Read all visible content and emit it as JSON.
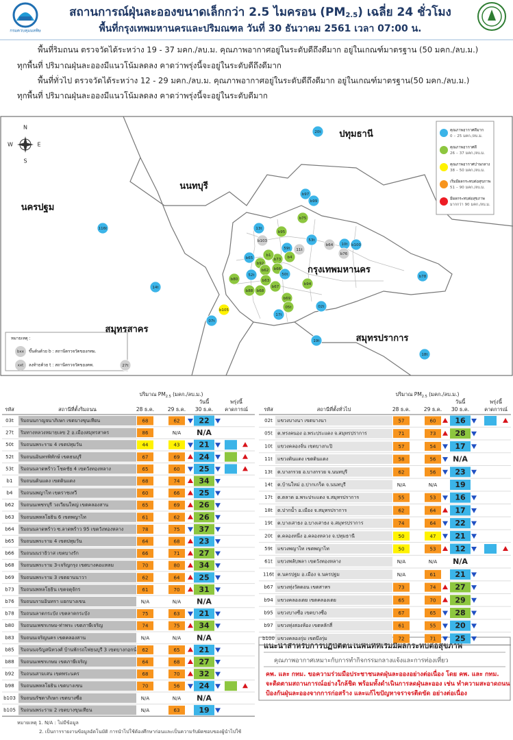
{
  "header": {
    "title": [
      "สถานการณ์ฝุ่นละอองขนาดเล็กกว่า 2.5 ไมครอน (PM",
      "2.5",
      ") เฉลี่ย 24 ชั่วโมง"
    ],
    "subtitle": "พื้นที่กรุงเทพมหานครและปริมณฑล วันที่ 30 ธันวาคม 2561 เวลา 07:00 น.",
    "logo_text": "กรมควบคุมมลพิษ"
  },
  "summary": [
    "พื้นที่ริมถนน ตรวจวัดได้ระหว่าง  19 - 37  มคก./ลบ.ม. คุณภาพอากาศอยู่ในระดับดีถึงดีมาก อยู่ในเกณฑ์มาตรฐาน (50 มคก./ลบ.ม.)",
    "ทุกพื้นที่ ปริมาณฝุ่นละอองมีแนวโน้มลดลง คาดว่าพรุ่งนี้จะอยู่ในระดับดีถึงดีมาก",
    "พื้นที่ทั่วไป ตรวจวัดได้ระหว่าง  12 - 29  มคก./ลบ.ม. คุณภาพอากาศอยู่ในระดับดีถึงดีมาก อยู่ในเกณฑ์มาตรฐาน(50 มคก./ลบ.ม.)",
    "ทุกพื้นที่ ปริมาณฝุ่นละอองมีแนวโน้มลดลง คาดว่าพรุ่งนี้จะอยู่ในระดับดีมาก"
  ],
  "map": {
    "compass": [
      "N",
      "E",
      "S",
      "W"
    ],
    "provinces": [
      "ปทุมธานี",
      "นนทบุรี",
      "นครปฐม",
      "กรุงเทพมหานคร",
      "สมุทรสาคร",
      "สมุทรปราการ"
    ],
    "markers": [
      {
        "label": "20t",
        "color": "#3bb4e8"
      },
      {
        "label": "b97",
        "color": "#3bb4e8"
      },
      {
        "label": "b99",
        "color": "#3bb4e8"
      },
      {
        "label": "b75",
        "color": "#8dc63f"
      },
      {
        "label": "13t",
        "color": "#3bb4e8"
      },
      {
        "label": "116t",
        "color": "#3bb4e8"
      },
      {
        "label": "b95",
        "color": "#8dc63f"
      },
      {
        "label": "53t",
        "color": "#3bb4e8"
      },
      {
        "label": "b103",
        "color": "#d0d0d0"
      },
      {
        "label": "59t",
        "color": "#3bb4e8"
      },
      {
        "label": "11t",
        "color": "#d0d0d0"
      },
      {
        "label": "b64",
        "color": "#d0d0d0"
      },
      {
        "label": "10t",
        "color": "#3bb4e8"
      },
      {
        "label": "b100",
        "color": "#3bb4e8"
      },
      {
        "label": "b76",
        "color": "#d0d0d0"
      },
      {
        "label": "b65",
        "color": "#3bb4e8"
      },
      {
        "label": "b92",
        "color": "#8dc63f"
      },
      {
        "label": "b73",
        "color": "#8dc63f"
      },
      {
        "label": "b4",
        "color": "#8dc63f"
      },
      {
        "label": "b1",
        "color": "#8dc63f"
      },
      {
        "label": "b62",
        "color": "#8dc63f"
      },
      {
        "label": "b66",
        "color": "#8dc63f"
      },
      {
        "label": "50t",
        "color": "#3bb4e8"
      },
      {
        "label": "52t",
        "color": "#3bb4e8"
      },
      {
        "label": "b80",
        "color": "#8dc63f"
      },
      {
        "label": "b63",
        "color": "#8dc63f"
      },
      {
        "label": "b67",
        "color": "#8dc63f"
      },
      {
        "label": "b68",
        "color": "#8dc63f"
      },
      {
        "label": "b88",
        "color": "#8dc63f"
      },
      {
        "label": "b94",
        "color": "#8dc63f"
      },
      {
        "label": "b69",
        "color": "#8dc63f"
      },
      {
        "label": "05t",
        "color": "#8dc63f"
      },
      {
        "label": "02t",
        "color": "#3bb4e8"
      },
      {
        "label": "17t",
        "color": "#3bb4e8"
      },
      {
        "label": "b105",
        "color": "#fff200"
      },
      {
        "label": "07t",
        "color": "#3bb4e8"
      },
      {
        "label": "14t",
        "color": "#3bb4e8"
      },
      {
        "label": "b78",
        "color": "#3bb4e8"
      },
      {
        "label": "19t",
        "color": "#3bb4e8"
      },
      {
        "label": "18t",
        "color": "#3bb4e8"
      },
      {
        "label": "27t",
        "color": "#d0d0d0"
      }
    ],
    "levels": {
      "sep": "–",
      "items": [
        {
          "title": "คุณภาพอากาศดีมาก",
          "min": 0,
          "max": 25,
          "unit": "มคก./ลบ.ม.",
          "color": "#3bb4e8"
        },
        {
          "title": "คุณภาพอากาศดี",
          "min": 26,
          "max": 37,
          "unit": "มคก./ลบ.ม.",
          "color": "#8dc63f"
        },
        {
          "title": "คุณภาพอากาศปานกลาง",
          "min": 38,
          "max": 50,
          "unit": "มคก./ลบ.ม.",
          "color": "#fff200"
        },
        {
          "title": "เริ่มมีผลกระทบต่อสุขภาพ",
          "min": 51,
          "max": 90,
          "unit": "มคก./ลบ.ม.",
          "color": "#f7941d"
        },
        {
          "title": "มีผลกระทบต่อสุขภาพ",
          "prefix": "มากกว่า",
          "min": 90,
          "unit": "มคก./ลบ.ม.",
          "color": "#ed1c24"
        }
      ]
    },
    "note": {
      "title": "หมายเหตุ :",
      "items": [
        {
          "symbol": "bxx",
          "text": "ขึ้นต้นด้วย b : สถานีตรวจวัดของกทม."
        },
        {
          "symbol": "xxt",
          "text": "ลงท้ายด้วย t : สถานีตรวจวัดของคพ."
        }
      ]
    }
  },
  "tables": [
    {
      "code_header": "รหัส",
      "name_header": "สถานีที่ตั้งริมถนน",
      "qty_header": [
        "ปริมาณ PM",
        "2.5",
        " (มคก./ลบ.ม.)"
      ],
      "today": "วันนี้",
      "tomorrow": "พรุ่งนี้",
      "forecast_header": "คาดการณ์",
      "dates": [
        "28 ธ.ค.",
        "29 ธ.ค.",
        "30 ธ.ค."
      ],
      "rows": [
        {
          "code": "03t",
          "name": "ริมถนนกาญจนาภิเษก เขตบางขุนเทียน",
          "values": [
            68,
            62,
            22
          ]
        },
        {
          "code": "27t",
          "name": "ริมทางหลวงหมายเลข 2 อ.เมืองสมุทรสาคร",
          "values": [
            86,
            "N/A",
            "N/A"
          ]
        },
        {
          "code": "50t",
          "name": "ริมถนนพระราม 4 เขตปทุมวัน",
          "values": [
            44,
            43,
            21
          ],
          "forecast": "#3bb4e8",
          "forecast_trend": "up"
        },
        {
          "code": "52t",
          "name": "ริมถนนอินทรพิทักษ์ เขตธนบุรี",
          "values": [
            67,
            69,
            24
          ],
          "forecast": "#8dc63f",
          "forecast_trend": "up"
        },
        {
          "code": "53t",
          "name": "ริมถนนลาดพร้าว โชคชัย 4 เขตวังทองหลาง",
          "values": [
            65,
            60,
            25
          ],
          "forecast": "#3bb4e8",
          "forecast_trend": "up"
        },
        {
          "code": "b1",
          "name": "ริมถนนดินแดง เขตดินแดง",
          "values": [
            68,
            74,
            34
          ]
        },
        {
          "code": "b4",
          "name": "ริมถนนพญาไท เขตราชเทวี",
          "values": [
            60,
            66,
            25
          ]
        },
        {
          "code": "b62",
          "name": "ริมถนนเพชรบุรี วงเวียนใหญ่ เขตคลองสาน",
          "values": [
            65,
            69,
            26
          ]
        },
        {
          "code": "b63",
          "name": "ริมถนนพหลโยธิน 6 เขตพญาไท",
          "values": [
            61,
            62,
            26
          ]
        },
        {
          "code": "b64",
          "name": "ริมถนนลาดพร้าว ซ.ลาดพร้าว 95 เขตวังทองหลาง",
          "values": [
            78,
            75,
            37
          ]
        },
        {
          "code": "b65",
          "name": "ริมถนนพระราม 4 เขตปทุมวัน",
          "values": [
            64,
            68,
            23
          ]
        },
        {
          "code": "b66",
          "name": "ริมถนนนราธิวาส เขตบางรัก",
          "values": [
            66,
            71,
            27
          ]
        },
        {
          "code": "b68",
          "name": "ริมถนนพระราม 3-เจริญกรุง เขตบางคอแหลม",
          "values": [
            70,
            80,
            34
          ]
        },
        {
          "code": "b69",
          "name": "ริมถนนพระราม 3 เขตยานนาวา",
          "values": [
            62,
            64,
            25
          ]
        },
        {
          "code": "b73",
          "name": "ริมถนนพหลโยธิน เขตจตุจักร",
          "values": [
            61,
            70,
            31
          ]
        },
        {
          "code": "b76",
          "name": "ริมถนนรามอินทรา แยกบางเขน",
          "values": [
            "N/A",
            "N/A",
            "N/A"
          ]
        },
        {
          "code": "b78",
          "name": "ริมถนนลาดกระบัง เขตลาดกระบัง",
          "values": [
            75,
            63,
            21
          ]
        },
        {
          "code": "b80",
          "name": "ริมถนนเพชรเกษม-ท่าพระ เขตภาษีเจริญ",
          "values": [
            74,
            75,
            34
          ]
        },
        {
          "code": "b83",
          "name": "ริมถนนเจริญนคร เขตคลองสาน",
          "values": [
            "N/A",
            "N/A",
            "N/A"
          ]
        },
        {
          "code": "b85",
          "name": "ริมถนนจรัญสนิทวงศ์ บ้านพักรถไฟธนบุรี 3 เขตบางกอกน้อย",
          "values": [
            62,
            65,
            21
          ]
        },
        {
          "code": "b88",
          "name": "ริมถนนเพชรเกษม เขตภาษีเจริญ",
          "values": [
            64,
            68,
            27
          ]
        },
        {
          "code": "b92",
          "name": "ริมถนนสามเสน เขตพระนคร",
          "values": [
            68,
            70,
            32
          ]
        },
        {
          "code": "b98",
          "name": "ริมถนนพหลโยธิน เขตบางเขน",
          "values": [
            70,
            56,
            24
          ],
          "forecast": "#8dc63f",
          "forecast_trend": "up"
        },
        {
          "code": "b103",
          "name": "ริมถนนรัชดาภิเษก เขตบางซื่อ",
          "values": [
            "N/A",
            "N/A",
            "N/A"
          ]
        },
        {
          "code": "b105",
          "name": "ริมถนนพระราม 2 เขตบางขุนเทียน",
          "values": [
            "N/A",
            63,
            19
          ]
        }
      ]
    },
    {
      "code_header": "รหัส",
      "name_header": "สถานีที่ตั้งทั่วไป",
      "qty_header": [
        "ปริมาณ PM",
        "2.5",
        " (มคก./ลบ.ม.)"
      ],
      "today": "วันนี้",
      "tomorrow": "พรุ่งนี้",
      "forecast_header": "คาดการณ์",
      "dates": [
        "28 ธ.ค.",
        "29 ธ.ค.",
        "30 ธ.ค."
      ],
      "rows": [
        {
          "code": "02t",
          "name": "แขวงบางนา เขตบางนา",
          "values": [
            57,
            60,
            16
          ],
          "forecast": "#3bb4e8",
          "forecast_trend": "up"
        },
        {
          "code": "05t",
          "name": "ต.ทรงคนอง อ.พระประแดง จ.สมุทรปราการ",
          "values": [
            71,
            73,
            28
          ]
        },
        {
          "code": "10t",
          "name": "แขวงคลองจั่น เขตบางกะปิ",
          "values": [
            57,
            54,
            17
          ]
        },
        {
          "code": "11t",
          "name": "แขวงดินแดง เขตดินแดง",
          "values": [
            58,
            56,
            "N/A"
          ]
        },
        {
          "code": "13t",
          "name": "ต.บางกรวย อ.บางกรวย จ.นนทบุรี",
          "values": [
            62,
            56,
            23
          ]
        },
        {
          "code": "14t",
          "name": "ต.บ้านใหม่ อ.ปากเกร็ด จ.นนทบุรี",
          "values": [
            "N/A",
            "N/A",
            19
          ]
        },
        {
          "code": "17t",
          "name": "ต.ตลาด อ.พระประแดง จ.สมุทรปราการ",
          "values": [
            55,
            53,
            16
          ]
        },
        {
          "code": "18t",
          "name": "ต.ปากน้ำ อ.เมือง จ.สมุทรปราการ",
          "values": [
            62,
            64,
            17
          ]
        },
        {
          "code": "19t",
          "name": "ต.บางเสาธง อ.บางเสาธง จ.สมุทรปราการ",
          "values": [
            74,
            64,
            22
          ]
        },
        {
          "code": "20t",
          "name": "ต.คลองหนึ่ง อ.คลองหลวง จ.ปทุมธานี",
          "values": [
            50,
            47,
            21
          ]
        },
        {
          "code": "59t",
          "name": "แขวงพญาไท เขตพญาไท",
          "values": [
            50,
            53,
            12
          ],
          "forecast": "#3bb4e8",
          "forecast_trend": "up"
        },
        {
          "code": "61t",
          "name": "แขวงพลับพลา เขตวังทองหลาง",
          "values": [
            "N/A",
            "N/A",
            "N/A"
          ]
        },
        {
          "code": "116t",
          "name": "ต.นครปฐม อ.เมือง จ.นครปฐม",
          "values": [
            "N/A",
            61,
            21
          ]
        },
        {
          "code": "b67",
          "name": "แขวงทุ่งวัดดอน เขตสาทร",
          "values": [
            73,
            74,
            27
          ]
        },
        {
          "code": "b94",
          "name": "แขวงคลองเตย เขตคลองเตย",
          "values": [
            65,
            70,
            29
          ]
        },
        {
          "code": "b95",
          "name": "แขวงบางซื่อ เขตบางซื่อ",
          "values": [
            67,
            65,
            28
          ]
        },
        {
          "code": "b97",
          "name": "แขวงทุ่งสองห้อง เขตหลักสี่",
          "values": [
            61,
            55,
            20
          ]
        },
        {
          "code": "b100",
          "name": "แขวงคลองกุ่ม เขตบึงกุ่ม",
          "values": [
            72,
            71,
            25
          ]
        }
      ]
    }
  ],
  "advice": {
    "title": "แนะนำสำหรับการปฏิบัติตนในพื้นที่ที่เริ่มมีผลกระทบต่อสุขภาพ",
    "text": "คุณภาพอากาศเหมาะกับการทำกิจกรรมกลางแจ้งและการท่องเที่ยว",
    "notice": [
      "คพ. และ กทม. ขอความร่วมมือประชาชนลดฝุ่นละอองอย่างต่อเนื่อง โดย คพ. และ กทม.",
      "จะติดตามสถานการณ์อย่างใกล้ชิด พร้อมทั้งดำเนินการลดฝุ่นละออง เช่น ทำความสะอาดถนน",
      "ป้องกันฝุ่นละอองจากการก่อสร้าง และแก้ไขปัญหาจราจรติดขัด อย่างต่อเนื่อง"
    ]
  },
  "footnotes": [
    "หมายเหตุ 1. N/A : ไม่มีข้อมูล",
    "2. เป็นการรายงานข้อมูลอัตโนมัติ การนำไปใช้ต้องศึกษาก่อนและเป็นความรับผิดชอบของผู้นำไปใช้"
  ]
}
